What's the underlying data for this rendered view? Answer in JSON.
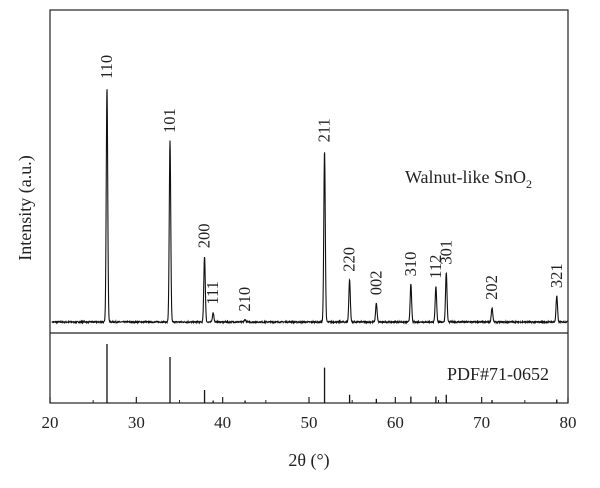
{
  "chart_data": {
    "type": "line",
    "title": "",
    "xlabel": "2θ (°)",
    "ylabel": "Intensity (a.u.)",
    "xlim": [
      20,
      80
    ],
    "xticks": [
      20,
      30,
      40,
      50,
      60,
      70,
      80
    ],
    "grid": false,
    "legend": "none",
    "series": [
      {
        "name": "Walnut-like SnO2",
        "baseline": 1.0,
        "peaks": [
          {
            "two_theta": 26.6,
            "intensity": 100,
            "hkl": "110"
          },
          {
            "two_theta": 33.9,
            "intensity": 77,
            "hkl": "101"
          },
          {
            "two_theta": 37.9,
            "intensity": 28,
            "hkl": "200"
          },
          {
            "two_theta": 38.9,
            "intensity": 4,
            "hkl": "111"
          },
          {
            "two_theta": 42.6,
            "intensity": 1,
            "hkl": "210"
          },
          {
            "two_theta": 51.8,
            "intensity": 73,
            "hkl": "211"
          },
          {
            "two_theta": 54.7,
            "intensity": 18,
            "hkl": "220"
          },
          {
            "two_theta": 57.8,
            "intensity": 8,
            "hkl": "002"
          },
          {
            "two_theta": 61.8,
            "intensity": 16,
            "hkl": "310"
          },
          {
            "two_theta": 64.7,
            "intensity": 15,
            "hkl": "112"
          },
          {
            "two_theta": 65.9,
            "intensity": 21,
            "hkl": "301"
          },
          {
            "two_theta": 71.2,
            "intensity": 6,
            "hkl": "202"
          },
          {
            "two_theta": 78.7,
            "intensity": 11,
            "hkl": "321"
          }
        ]
      },
      {
        "name": "PDF#71-0652",
        "type": "stick",
        "peaks": [
          {
            "two_theta": 26.6,
            "intensity": 100
          },
          {
            "two_theta": 33.9,
            "intensity": 78
          },
          {
            "two_theta": 37.9,
            "intensity": 22
          },
          {
            "two_theta": 38.9,
            "intensity": 4
          },
          {
            "two_theta": 42.6,
            "intensity": 1
          },
          {
            "two_theta": 51.8,
            "intensity": 60
          },
          {
            "two_theta": 54.7,
            "intensity": 14
          },
          {
            "two_theta": 57.8,
            "intensity": 7
          },
          {
            "two_theta": 61.8,
            "intensity": 11
          },
          {
            "two_theta": 64.7,
            "intensity": 11
          },
          {
            "two_theta": 65.9,
            "intensity": 14
          },
          {
            "two_theta": 71.2,
            "intensity": 5
          },
          {
            "two_theta": 78.7,
            "intensity": 6
          }
        ]
      }
    ],
    "annotations": {
      "sample": {
        "text": "Walnut-like SnO",
        "subscript": "2"
      },
      "reference": "PDF#71-0652"
    },
    "colors": {
      "line": "#111111",
      "frame": "#222222"
    }
  }
}
